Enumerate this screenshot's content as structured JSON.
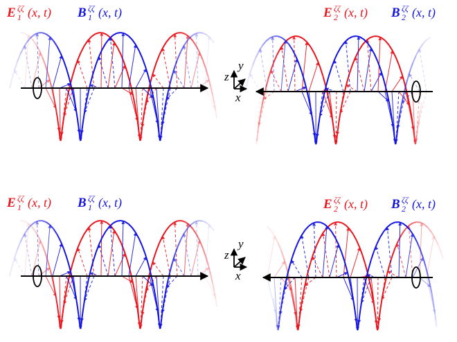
{
  "panels": [
    {
      "e_label": {
        "symbol": "E",
        "sub": "1",
        "sup": "ζζ",
        "args": "(x, t)"
      },
      "b_label": {
        "symbol": "B",
        "sub": "1",
        "sup": "ζζ",
        "args": "(x, t)"
      }
    },
    {
      "e_label": {
        "symbol": "E",
        "sub": "2",
        "sup": "ζζ",
        "args": "(x, t)"
      },
      "b_label": {
        "symbol": "B",
        "sub": "2",
        "sup": "ζζ",
        "args": "(x, t)"
      }
    },
    {
      "e_label": {
        "symbol": "E",
        "sub": "1",
        "sup": "ζζ",
        "args": "(x, t)"
      },
      "b_label": {
        "symbol": "B",
        "sub": "1",
        "sup": "ζζ",
        "args": "(x, t)"
      }
    },
    {
      "e_label": {
        "symbol": "E",
        "sub": "2",
        "sup": "ζζ",
        "args": "(x, t)"
      },
      "b_label": {
        "symbol": "B",
        "sub": "2",
        "sup": "ζζ",
        "args": "(x, t)"
      }
    }
  ],
  "axes": [
    {
      "z": "z",
      "y": "y",
      "x": "x"
    },
    {
      "z": "z",
      "y": "y",
      "x": "x"
    }
  ]
}
